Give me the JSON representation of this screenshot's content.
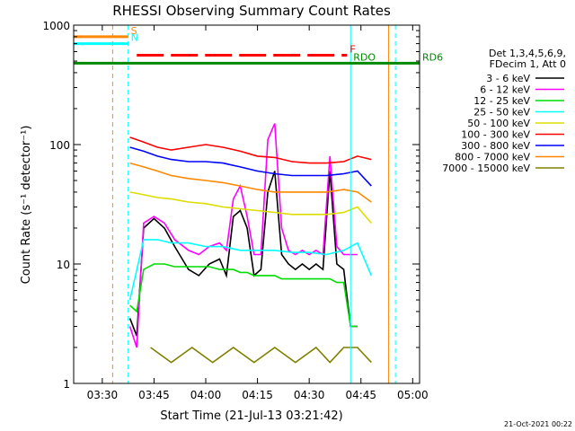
{
  "chart_data": {
    "type": "line",
    "title": "RHESSI Observing Summary Count Rates",
    "xlabel": "Start Time (21-Jul-13 03:21:42)",
    "ylabel": "Count Rate (s⁻¹ detector⁻¹)",
    "x_unit": "UT time (hh:mm)",
    "xlim": [
      "03:21:42",
      "05:02:00"
    ],
    "ylim": [
      1,
      1000
    ],
    "yscale": "log",
    "x_ticks": [
      "03:30",
      "03:45",
      "04:00",
      "04:15",
      "04:30",
      "04:45",
      "05:00"
    ],
    "y_ticks": [
      "1",
      "10",
      "100",
      "1000"
    ],
    "legend_header": [
      "Det 1,3,4,5,6,9,",
      "FDecim 1, Att 0"
    ],
    "legend_position": "right",
    "timestamp": "21-Oct-2021 00:22",
    "series": [
      {
        "name": "3 - 6 keV",
        "color": "#000000",
        "x": [
          "03:38",
          "03:40",
          "03:42",
          "03:45",
          "03:48",
          "03:51",
          "03:55",
          "03:58",
          "04:01",
          "04:04",
          "04:06",
          "04:08",
          "04:10",
          "04:12",
          "04:14",
          "04:16",
          "04:18",
          "04:20",
          "04:22",
          "04:24",
          "04:26",
          "04:28",
          "04:30",
          "04:32",
          "04:34",
          "04:36",
          "04:38",
          "04:40",
          "04:42",
          "04:44"
        ],
        "y": [
          3.5,
          2.5,
          20,
          24,
          20,
          14,
          9,
          8,
          10,
          11,
          8,
          25,
          28,
          20,
          8,
          9,
          40,
          60,
          12,
          10,
          9,
          10,
          9,
          10,
          9,
          60,
          10,
          9,
          3,
          3
        ]
      },
      {
        "name": "6 - 12 keV",
        "color": "#ff00ff",
        "x": [
          "03:38",
          "03:40",
          "03:42",
          "03:45",
          "03:48",
          "03:51",
          "03:55",
          "03:58",
          "04:01",
          "04:04",
          "04:06",
          "04:08",
          "04:10",
          "04:12",
          "04:14",
          "04:16",
          "04:18",
          "04:20",
          "04:22",
          "04:24",
          "04:26",
          "04:28",
          "04:30",
          "04:32",
          "04:34",
          "04:36",
          "04:38",
          "04:40",
          "04:42",
          "04:44"
        ],
        "y": [
          3,
          2,
          22,
          25,
          22,
          16,
          13,
          12,
          14,
          15,
          13,
          35,
          45,
          25,
          12,
          12,
          110,
          150,
          20,
          13,
          12,
          13,
          12,
          13,
          12,
          80,
          14,
          12,
          12,
          12
        ]
      },
      {
        "name": "12 - 25 keV",
        "color": "#00dd00",
        "x": [
          "03:38",
          "03:40",
          "03:42",
          "03:45",
          "03:48",
          "03:51",
          "03:55",
          "03:58",
          "04:01",
          "04:04",
          "04:06",
          "04:08",
          "04:10",
          "04:12",
          "04:14",
          "04:16",
          "04:18",
          "04:20",
          "04:22",
          "04:24",
          "04:26",
          "04:28",
          "04:30",
          "04:32",
          "04:34",
          "04:36",
          "04:38",
          "04:40",
          "04:42",
          "04:44"
        ],
        "y": [
          4.5,
          4,
          9,
          10,
          10,
          9.5,
          9.5,
          9.5,
          9.5,
          9,
          9,
          9,
          8.5,
          8.5,
          8,
          8,
          8,
          8,
          7.5,
          7.5,
          7.5,
          7.5,
          7.5,
          7.5,
          7.5,
          7.5,
          7,
          7,
          3,
          3
        ]
      },
      {
        "name": "25 - 50 keV",
        "color": "#00ffff",
        "x": [
          "03:38",
          "03:42",
          "03:46",
          "03:50",
          "03:55",
          "04:00",
          "04:05",
          "04:10",
          "04:15",
          "04:20",
          "04:25",
          "04:30",
          "04:35",
          "04:40",
          "04:44",
          "04:48"
        ],
        "y": [
          5,
          16,
          16,
          15,
          15,
          14,
          14,
          13,
          13,
          13,
          12.5,
          12.5,
          12,
          13,
          15,
          8
        ]
      },
      {
        "name": "50 - 100 keV",
        "color": "#dddd00",
        "x": [
          "03:38",
          "03:42",
          "03:46",
          "03:50",
          "03:55",
          "04:00",
          "04:05",
          "04:10",
          "04:15",
          "04:20",
          "04:25",
          "04:30",
          "04:35",
          "04:40",
          "04:44",
          "04:48"
        ],
        "y": [
          40,
          38,
          36,
          35,
          33,
          32,
          30,
          29,
          28,
          27,
          26,
          26,
          26,
          27,
          30,
          22
        ]
      },
      {
        "name": "100 - 300 keV",
        "color": "#ff0000",
        "x": [
          "03:38",
          "03:42",
          "03:46",
          "03:50",
          "03:55",
          "04:00",
          "04:05",
          "04:10",
          "04:15",
          "04:20",
          "04:25",
          "04:30",
          "04:35",
          "04:40",
          "04:44",
          "04:48"
        ],
        "y": [
          115,
          105,
          95,
          90,
          95,
          100,
          95,
          88,
          80,
          78,
          72,
          70,
          70,
          72,
          80,
          75
        ]
      },
      {
        "name": "300 - 800 keV",
        "color": "#0000ff",
        "x": [
          "03:38",
          "03:42",
          "03:46",
          "03:50",
          "03:55",
          "04:00",
          "04:05",
          "04:10",
          "04:15",
          "04:20",
          "04:25",
          "04:30",
          "04:35",
          "04:40",
          "04:44",
          "04:48"
        ],
        "y": [
          95,
          88,
          80,
          75,
          72,
          72,
          70,
          65,
          60,
          57,
          55,
          55,
          55,
          57,
          60,
          45
        ]
      },
      {
        "name": "800 - 7000 keV",
        "color": "#ff8800",
        "x": [
          "03:38",
          "03:42",
          "03:46",
          "03:50",
          "03:55",
          "04:00",
          "04:05",
          "04:10",
          "04:15",
          "04:20",
          "04:25",
          "04:30",
          "04:35",
          "04:40",
          "04:44",
          "04:48"
        ],
        "y": [
          70,
          65,
          60,
          55,
          52,
          50,
          48,
          45,
          42,
          40,
          40,
          40,
          40,
          42,
          40,
          33
        ]
      },
      {
        "name": "7000 - 15000 keV",
        "color": "#808000",
        "x": [
          "03:44",
          "03:50",
          "03:56",
          "04:02",
          "04:08",
          "04:14",
          "04:20",
          "04:26",
          "04:32",
          "04:36",
          "04:40",
          "04:44",
          "04:48"
        ],
        "y": [
          2,
          1.5,
          2,
          1.5,
          2,
          1.5,
          2,
          1.5,
          2,
          1.5,
          2,
          2,
          1.5
        ]
      }
    ],
    "annotations": {
      "attenuator_bars": [
        {
          "label": "S",
          "color": "#ff8800",
          "start": "03:21:42",
          "end": "03:37:30",
          "level": 800,
          "dashed": false
        },
        {
          "label": "N",
          "color": "#00ffff",
          "start": "03:21:42",
          "end": "03:37:30",
          "level": 700,
          "dashed": false
        },
        {
          "label": "F",
          "color": "#ff0000",
          "start": "03:40:00",
          "end": "04:41:00",
          "level": 560,
          "dashed": true
        },
        {
          "label": "RD6",
          "color": "#008800",
          "start": "03:21:42",
          "end": "05:02:00",
          "level": 480,
          "dashed": false
        },
        {
          "label": "RDO",
          "color": "#008800",
          "start": "04:42:00",
          "end": "04:42:00",
          "level": 480,
          "dashed": false
        }
      ],
      "vertical_lines": [
        {
          "time": "03:33:00",
          "color": "#ff8800",
          "style": "dashed"
        },
        {
          "time": "03:37:30",
          "color": "#00ffff",
          "style": "dashed"
        },
        {
          "time": "04:42:00",
          "color": "#00ffff",
          "style": "solid"
        },
        {
          "time": "04:53:00",
          "color": "#ff8800",
          "style": "solid"
        },
        {
          "time": "04:55:00",
          "color": "#00ffff",
          "style": "dashed"
        }
      ]
    }
  }
}
